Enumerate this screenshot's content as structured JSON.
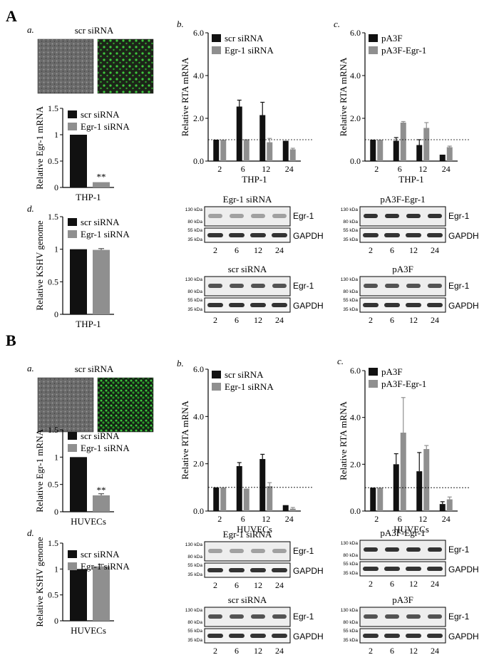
{
  "colors": {
    "black": "#111111",
    "gray": "#8f8f8f",
    "green": "#3ec83e",
    "micro_bg": "#5a5a5a"
  },
  "labels": {
    "A": "A",
    "B": "B",
    "a": "a.",
    "b": "b.",
    "c": "c.",
    "d": "d.",
    "micrograph_title": "scr siRNA",
    "kda_130": "130 kDa",
    "kda_80": "80 kDa",
    "kda_55": "55 kDa",
    "kda_35": "35 kDa",
    "egr1": "Egr-1",
    "gapdh": "GAPDH"
  },
  "blots": {
    "A_left_top_title": "Egr-1 siRNA",
    "A_left_bot_title": "scr siRNA",
    "A_right_top_title": "pA3F-Egr-1",
    "A_right_bot_title": "pA3F",
    "B_left_top_title": "Egr-1 siRNA",
    "B_left_bot_title": "scr siRNA",
    "B_right_top_title": "pA3F-Egr-1",
    "B_right_bot_title": "pA3F",
    "lanes": [
      "2",
      "6",
      "12",
      "24"
    ]
  },
  "chart_data": [
    {
      "id": "Aa",
      "type": "bar",
      "ylabel": "Relative Egr-1 mRNA",
      "xlabel": "THP-1",
      "ylim": [
        0,
        1.5
      ],
      "yticks": [
        0,
        0.5,
        1.0,
        1.5
      ],
      "series": [
        {
          "name": "scr siRNA",
          "values": [
            1.0
          ]
        },
        {
          "name": "Egr-1 siRNA",
          "values": [
            0.1
          ]
        }
      ],
      "annotation": "**"
    },
    {
      "id": "Ab",
      "type": "bar",
      "ylabel": "Relative RTA mRNA",
      "xlabel": "THP-1",
      "ylim": [
        0,
        6
      ],
      "yticks": [
        0.0,
        2.0,
        4.0,
        6.0
      ],
      "categories": [
        "2",
        "6",
        "12",
        "24"
      ],
      "series": [
        {
          "name": "scr siRNA",
          "values": [
            1.0,
            2.55,
            2.15,
            0.95
          ],
          "errors": [
            0,
            0.3,
            0.6,
            0
          ]
        },
        {
          "name": "Egr-1 siRNA",
          "values": [
            1.0,
            1.02,
            0.88,
            0.55
          ],
          "errors": [
            0,
            0,
            0.18,
            0.05
          ]
        }
      ],
      "reference_line": 1.0
    },
    {
      "id": "Ac",
      "type": "bar",
      "ylabel": "Relative RTA mRNA",
      "xlabel": "THP-1",
      "ylim": [
        0,
        6
      ],
      "yticks": [
        0.0,
        2.0,
        4.0,
        6.0
      ],
      "categories": [
        "2",
        "6",
        "12",
        "24"
      ],
      "series": [
        {
          "name": "pA3F",
          "values": [
            1.0,
            0.95,
            0.75,
            0.3
          ],
          "errors": [
            0,
            0.15,
            0.25,
            0
          ]
        },
        {
          "name": "pA3F-Egr-1",
          "values": [
            1.0,
            1.8,
            1.55,
            0.65
          ],
          "errors": [
            0,
            0.05,
            0.25,
            0.05
          ]
        }
      ],
      "reference_line": 1.0
    },
    {
      "id": "Ad",
      "type": "bar",
      "ylabel": "Relative KSHV genome",
      "xlabel": "THP-1",
      "ylim": [
        0,
        1.5
      ],
      "yticks": [
        0,
        0.5,
        1.0,
        1.5
      ],
      "series": [
        {
          "name": "scr siRNA",
          "values": [
            1.0
          ]
        },
        {
          "name": "Egr-1 siRNA",
          "values": [
            0.99
          ],
          "errors": [
            0.02
          ]
        }
      ]
    },
    {
      "id": "Ba",
      "type": "bar",
      "ylabel": "Relative Egr-1 mRNA",
      "xlabel": "HUVECs",
      "ylim": [
        0,
        1.5
      ],
      "yticks": [
        0,
        0.5,
        1.0,
        1.5
      ],
      "series": [
        {
          "name": "scr siRNA",
          "values": [
            1.0
          ]
        },
        {
          "name": "Egr-1 siRNA",
          "values": [
            0.3
          ],
          "errors": [
            0.03
          ]
        }
      ],
      "annotation": "**"
    },
    {
      "id": "Bb",
      "type": "bar",
      "ylabel": "Relative RTA mRNA",
      "xlabel": "HUVECs",
      "ylim": [
        0,
        6
      ],
      "yticks": [
        0.0,
        2.0,
        4.0,
        6.0
      ],
      "categories": [
        "2",
        "6",
        "12",
        "24"
      ],
      "series": [
        {
          "name": "scr siRNA",
          "values": [
            1.0,
            1.9,
            2.2,
            0.25
          ],
          "errors": [
            0,
            0.15,
            0.2,
            0
          ]
        },
        {
          "name": "Egr-1 siRNA",
          "values": [
            1.0,
            0.95,
            1.05,
            0.1
          ],
          "errors": [
            0,
            0,
            0.15,
            0.05
          ]
        }
      ],
      "reference_line": 1.0
    },
    {
      "id": "Bc",
      "type": "bar",
      "ylabel": "Relative RTA mRNA",
      "xlabel": "HUVECs",
      "ylim": [
        0,
        6
      ],
      "yticks": [
        0.0,
        2.0,
        4.0,
        6.0
      ],
      "categories": [
        "2",
        "6",
        "12",
        "24"
      ],
      "series": [
        {
          "name": "pA3F",
          "values": [
            1.0,
            2.0,
            1.7,
            0.3
          ],
          "errors": [
            0,
            0.45,
            0.8,
            0.1
          ]
        },
        {
          "name": "pA3F-Egr-1",
          "values": [
            1.0,
            3.35,
            2.65,
            0.5
          ],
          "errors": [
            0,
            1.5,
            0.15,
            0.1
          ]
        }
      ],
      "reference_line": 1.0
    },
    {
      "id": "Bd",
      "type": "bar",
      "ylabel": "Relative KSHV genome",
      "xlabel": "HUVECs",
      "ylim": [
        0,
        1.5
      ],
      "yticks": [
        0,
        0.5,
        1.0,
        1.5
      ],
      "series": [
        {
          "name": "scr siRNA",
          "values": [
            1.0
          ]
        },
        {
          "name": "Egr-1 siRNA",
          "values": [
            1.05
          ],
          "errors": [
            0.04
          ]
        }
      ]
    }
  ]
}
